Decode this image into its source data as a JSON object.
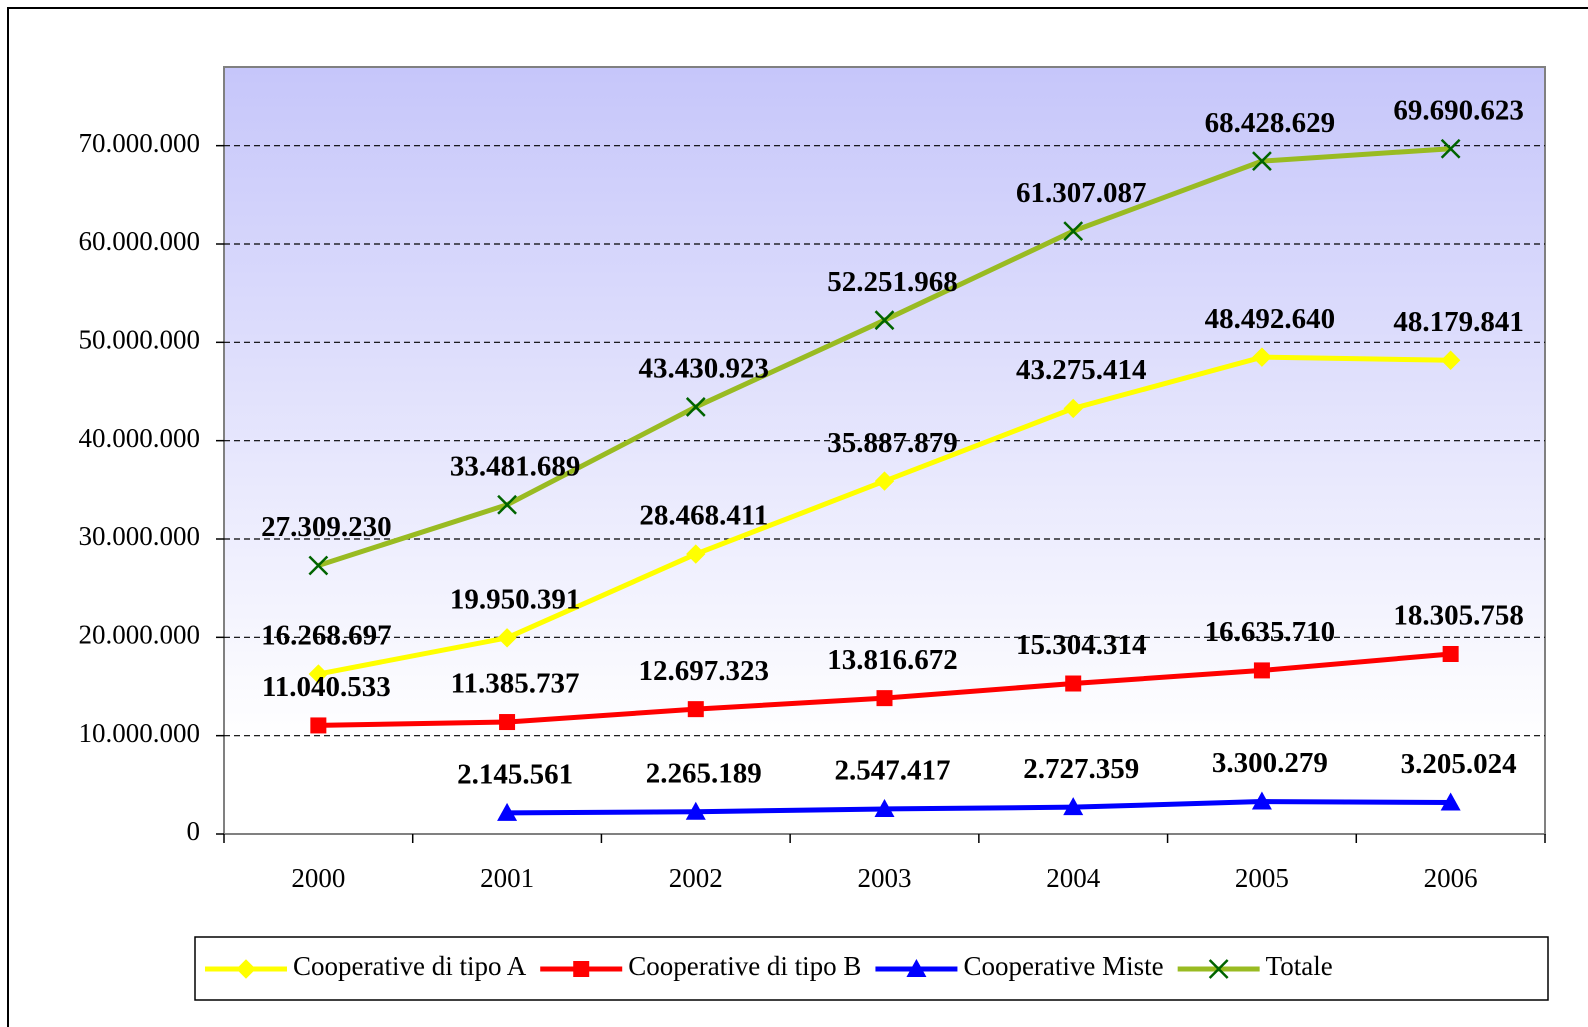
{
  "chart_data": {
    "type": "line",
    "categories": [
      "2000",
      "2001",
      "2002",
      "2003",
      "2004",
      "2005",
      "2006"
    ],
    "series": [
      {
        "name": "Cooperative di tipo A",
        "color": "#ffff00",
        "marker": "diamond",
        "values": [
          16268697,
          19950391,
          28468411,
          35887879,
          43275414,
          48492640,
          48179841
        ],
        "value_labels": [
          "16.268.697",
          "19.950.391",
          "28.468.411",
          "35.887.879",
          "43.275.414",
          "48.492.640",
          "48.179.841"
        ]
      },
      {
        "name": "Cooperative di tipo B",
        "color": "#ff0000",
        "marker": "square",
        "values": [
          11040533,
          11385737,
          12697323,
          13816672,
          15304314,
          16635710,
          18305758
        ],
        "value_labels": [
          "11.040.533",
          "11.385.737",
          "12.697.323",
          "13.816.672",
          "15.304.314",
          "16.635.710",
          "18.305.758"
        ]
      },
      {
        "name": "Cooperative Miste",
        "color": "#0000ff",
        "marker": "triangle",
        "values": [
          null,
          2145561,
          2265189,
          2547417,
          2727359,
          3300279,
          3205024
        ],
        "value_labels": [
          null,
          "2.145.561",
          "2.265.189",
          "2.547.417",
          "2.727.359",
          "3.300.279",
          "3.205.024"
        ]
      },
      {
        "name": "Totale",
        "color": "#99bb22",
        "marker": "x",
        "values": [
          27309230,
          33481689,
          43430923,
          52251968,
          61307087,
          68428629,
          69690623
        ],
        "value_labels": [
          "27.309.230",
          "33.481.689",
          "43.430.923",
          "52.251.968",
          "61.307.087",
          "68.428.629",
          "69.690.623"
        ]
      }
    ],
    "ylim": [
      0,
      78000000
    ],
    "yticks": [
      0,
      {
        "value": 10000000,
        "label": "10.000.000"
      },
      {
        "value": 20000000,
        "label": "20.000.000"
      },
      {
        "value": 30000000,
        "label": "30.000.000"
      },
      {
        "value": 40000000,
        "label": "40.000.000"
      },
      {
        "value": 50000000,
        "label": "50.000.000"
      },
      {
        "value": 60000000,
        "label": "60.000.000"
      },
      {
        "value": 70000000,
        "label": "70.000.000"
      }
    ],
    "grid": true,
    "legend": "bottom"
  }
}
